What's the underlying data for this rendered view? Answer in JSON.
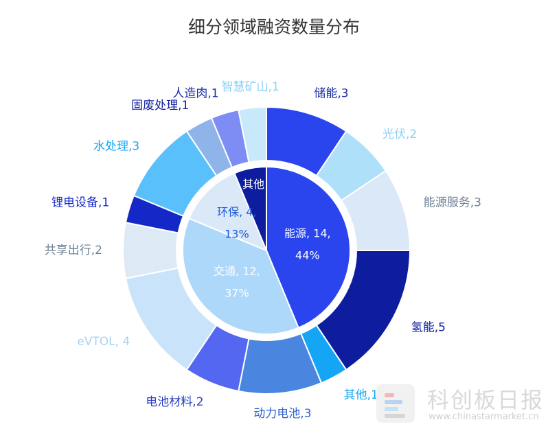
{
  "chart_data": {
    "type": "pie",
    "title": "细分领域融资数量分布",
    "inner": [
      {
        "name": "能源",
        "value": 14,
        "pct": "44%",
        "color": "#2a45ee",
        "text_color": "#ffffff"
      },
      {
        "name": "交通",
        "value": 12,
        "pct": "37%",
        "color": "#aed8f9",
        "text_color": "#ffffff"
      },
      {
        "name": "环保",
        "value": 4,
        "pct": "13%",
        "color": "#dbe8f8",
        "text_color": "#1e5bd8"
      },
      {
        "name": "其他",
        "value": 2,
        "pct": "",
        "color": "#0d1d9e",
        "text_color": "#ffffff"
      }
    ],
    "outer": [
      {
        "name": "储能",
        "value": 3,
        "label": "储能,3",
        "color": "#2a45ee",
        "label_color": "#1a2fa8"
      },
      {
        "name": "光伏",
        "value": 2,
        "label": "光伏,2",
        "color": "#aee0fa",
        "label_color": "#8ed0f5"
      },
      {
        "name": "能源服务",
        "value": 3,
        "label": "能源服务,3",
        "color": "#dbe8f8",
        "label_color": "#6e8195"
      },
      {
        "name": "氢能",
        "value": 5,
        "label": "氢能,5",
        "color": "#0d1d9e",
        "label_color": "#0d1d9e"
      },
      {
        "name": "其他",
        "value": 1,
        "label": "其他,1",
        "color": "#14a6f5",
        "label_color": "#14a6f5"
      },
      {
        "name": "动力电池",
        "value": 3,
        "label": "动力电池,3",
        "color": "#4a86e0",
        "label_color": "#2f63c9"
      },
      {
        "name": "电池材料",
        "value": 2,
        "label": "电池材料,2",
        "color": "#5467f0",
        "label_color": "#2a3fc5"
      },
      {
        "name": "eVTOL",
        "value": 4,
        "label": "eVTOL, 4",
        "color": "#c9e4fa",
        "label_color": "#a9d3f2"
      },
      {
        "name": "共享出行",
        "value": 2,
        "label": "共享出行,2",
        "color": "#dee9f6",
        "label_color": "#6e8195"
      },
      {
        "name": "锂电设备",
        "value": 1,
        "label": "锂电设备,1",
        "color": "#1428c8",
        "label_color": "#1428c8"
      },
      {
        "name": "水处理",
        "value": 3,
        "label": "水处理,3",
        "color": "#5ac0fb",
        "label_color": "#14a6f5"
      },
      {
        "name": "固废处理",
        "value": 1,
        "label": "固废处理,1",
        "color": "#8fb4ea",
        "label_color": "#0d1d9e"
      },
      {
        "name": "人造肉",
        "value": 1,
        "label": "人造肉,1",
        "color": "#7d8df3",
        "label_color": "#1a2fa8"
      },
      {
        "name": "智慧矿山",
        "value": 1,
        "label": "智慧矿山,1",
        "color": "#c8e9fb",
        "label_color": "#8ed0f5"
      }
    ]
  },
  "watermark": {
    "name": "科创板日报",
    "url": "www.chinastarmarket.cn"
  }
}
